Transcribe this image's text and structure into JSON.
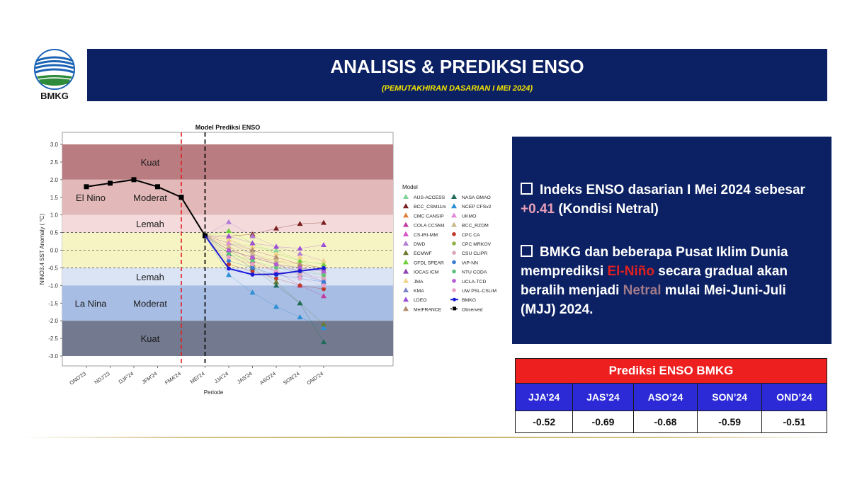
{
  "logo": {
    "text": "BMKG"
  },
  "header": {
    "title": "ANALISIS & PREDIKSI ENSO",
    "subtitle": "(PEMUTAKHIRAN DASARIAN I MEI 2024)"
  },
  "info": {
    "bullet1_part1": "Indeks ENSO dasarian I Mei 2024 sebesar ",
    "bullet1_value": "+0.41",
    "bullet1_part2": " (Kondisi Netral)",
    "bullet2_part1": "BMKG dan beberapa Pusat Iklim Dunia memprediksi ",
    "bullet2_elnino": "El-Niño",
    "bullet2_part2": " secara gradual akan beralih menjadi ",
    "bullet2_netral": "Netral",
    "bullet2_part3": " mulai Mei-Juni-Juli (MJJ) 2024."
  },
  "prediction_table": {
    "title": "Prediksi ENSO BMKG",
    "headers": [
      "JJA’24",
      "JAS’24",
      "ASO’24",
      "SON’24",
      "OND’24"
    ],
    "values": [
      "-0.52",
      "-0.69",
      "-0.68",
      "-0.59",
      "-0.51"
    ]
  },
  "chart_data": {
    "type": "line",
    "title": "Model Prediksi ENSO",
    "xlabel": "Periode",
    "ylabel": "NINO3.4 SST Anomaly ( °C)",
    "ylim": [
      -3.0,
      3.0
    ],
    "yticks": [
      "3.0",
      "2.5",
      "2.0",
      "1.5",
      "1.0",
      "0.5",
      "0.0",
      "-0.5",
      "-1.0",
      "-1.5",
      "-2.0",
      "-2.5",
      "-3.0"
    ],
    "categories": [
      "OND'23",
      "NDJ'23",
      "DJF'24",
      "JFM'24",
      "FMA'24",
      "MEI'24",
      "JJA'24",
      "JAS'24",
      "ASO'24",
      "SON'24",
      "OND'24"
    ],
    "bands": [
      {
        "from": 2.0,
        "to": 3.0,
        "color": "#b97c80",
        "label": "Kuat"
      },
      {
        "from": 1.0,
        "to": 2.0,
        "color": "#e3b8b8",
        "label": "Moderat"
      },
      {
        "from": 0.5,
        "to": 1.0,
        "color": "#f4dada",
        "label": "Lemah"
      },
      {
        "from": -0.5,
        "to": 0.5,
        "color": "#f7f4c4",
        "label": ""
      },
      {
        "from": -1.0,
        "to": -0.5,
        "color": "#dbe4f5",
        "label": "Lemah"
      },
      {
        "from": -2.0,
        "to": -1.0,
        "color": "#a7bde3",
        "label": "Moderat"
      },
      {
        "from": -3.0,
        "to": -2.0,
        "color": "#737a8f",
        "label": "Kuat"
      }
    ],
    "phase_labels": [
      {
        "text": "El Nino",
        "y": 1.5
      },
      {
        "text": "La Nina",
        "y": -1.5
      }
    ],
    "observed": {
      "name": "Observed",
      "values": [
        1.8,
        1.9,
        2.0,
        1.8,
        1.5,
        0.41
      ]
    },
    "bmkg": {
      "name": "BMKG",
      "values": [
        -0.52,
        -0.69,
        -0.68,
        -0.59,
        -0.51
      ]
    },
    "legend_title": "Model",
    "legend_placement": "right",
    "models": [
      {
        "name": "AUS-ACCESS",
        "color": "#7fd39a",
        "marker": "triangle",
        "values": [
          0.2,
          0.1,
          0.0,
          -0.3,
          -0.6
        ]
      },
      {
        "name": "BCC_CSM11m",
        "color": "#7a1f1f",
        "marker": "triangle",
        "values": [
          0.4,
          0.45,
          0.62,
          0.75,
          0.78
        ]
      },
      {
        "name": "CMC CANSIP",
        "color": "#e0813b",
        "marker": "triangle",
        "values": [
          0.0,
          -0.2,
          -0.3,
          -0.4,
          -0.5
        ]
      },
      {
        "name": "COLA CCSM4",
        "color": "#c23aa0",
        "marker": "triangle",
        "values": [
          0.1,
          -0.3,
          -0.6,
          -1.0,
          -1.3
        ]
      },
      {
        "name": "CS-IRI-MM",
        "color": "#d94fc8",
        "marker": "triangle",
        "values": [
          0.3,
          0.0,
          -0.2,
          -0.4,
          -0.6
        ]
      },
      {
        "name": "DWD",
        "color": "#b07ad6",
        "marker": "triangle",
        "values": [
          0.8,
          0.4,
          0.1,
          -0.1,
          -0.3
        ]
      },
      {
        "name": "ECMWF",
        "color": "#6b7a2a",
        "marker": "triangle",
        "values": [
          0.0,
          -0.4,
          -0.9,
          -1.5,
          -2.1
        ]
      },
      {
        "name": "GFDL SPEAR",
        "color": "#6fd13a",
        "marker": "triangle",
        "values": [
          0.55,
          0.2,
          -0.1,
          -0.3,
          -0.4
        ]
      },
      {
        "name": "IOCAS ICM",
        "color": "#8e3fb0",
        "marker": "triangle",
        "values": [
          0.0,
          -0.2,
          -0.4,
          -0.6,
          -0.9
        ]
      },
      {
        "name": "JMA",
        "color": "#f3d28a",
        "marker": "triangle",
        "values": [
          0.3,
          0.1,
          -0.1,
          -0.2,
          -0.3
        ]
      },
      {
        "name": "KMA",
        "color": "#7b86c8",
        "marker": "triangle",
        "values": [
          0.2,
          -0.1,
          -0.4,
          -0.7,
          -0.9
        ]
      },
      {
        "name": "LDEO",
        "color": "#9c4fd6",
        "marker": "triangle",
        "values": [
          0.4,
          0.2,
          0.1,
          0.05,
          0.15
        ]
      },
      {
        "name": "MetFRANCE",
        "color": "#b08a6a",
        "marker": "triangle",
        "values": [
          0.2,
          0.0,
          -0.2,
          -0.4,
          -0.5
        ]
      },
      {
        "name": "NASA GMAO",
        "color": "#1f6b5a",
        "marker": "triangle",
        "values": [
          -0.1,
          -0.5,
          -1.0,
          -1.5,
          -2.6
        ]
      },
      {
        "name": "NCEP CFSv2",
        "color": "#2a8fd6",
        "marker": "triangle",
        "values": [
          -0.7,
          -1.2,
          -1.6,
          -1.9,
          -2.2
        ]
      },
      {
        "name": "UKMO",
        "color": "#e08ad6",
        "marker": "triangle",
        "values": [
          0.2,
          -0.1,
          -0.4,
          -0.6,
          -0.8
        ]
      },
      {
        "name": "BCC_RZDM",
        "color": "#c9b88a",
        "marker": "triangle",
        "values": [
          0.1,
          -0.1,
          -0.3,
          -0.5,
          -0.7
        ]
      },
      {
        "name": "CPC CA",
        "color": "#c0392b",
        "marker": "circle",
        "values": [
          -0.4,
          -0.6,
          -0.8,
          -1.0,
          -1.1
        ]
      },
      {
        "name": "CPC MRKOV",
        "color": "#8fb04a",
        "marker": "circle",
        "values": [
          0.0,
          -0.2,
          -0.4,
          -0.5,
          -0.6
        ]
      },
      {
        "name": "CSU CLIPR",
        "color": "#d9a6b6",
        "marker": "circle",
        "values": [
          -0.2,
          -0.4,
          -0.6,
          -0.7,
          -0.8
        ]
      },
      {
        "name": "IAP-NN",
        "color": "#3a7bd6",
        "marker": "circle",
        "values": [
          -0.3,
          -0.5,
          -0.7,
          -0.8,
          -0.9
        ]
      },
      {
        "name": "NTU CODA",
        "color": "#5ec27a",
        "marker": "circle",
        "values": [
          -0.1,
          -0.3,
          -0.5,
          -0.6,
          -0.7
        ]
      },
      {
        "name": "UCLA-TCD",
        "color": "#b45ad6",
        "marker": "circle",
        "values": [
          0.0,
          -0.2,
          -0.4,
          -0.5,
          -0.6
        ]
      },
      {
        "name": "UW PSL-CSLIM",
        "color": "#e8a0c8",
        "marker": "circle",
        "values": [
          -0.2,
          -0.4,
          -0.6,
          -0.8,
          -1.0
        ]
      },
      {
        "name": "BMKG",
        "color": "#1a1ad6",
        "marker": "line",
        "values": []
      },
      {
        "name": "Observed",
        "color": "#000000",
        "marker": "dashsquare",
        "values": []
      }
    ]
  }
}
